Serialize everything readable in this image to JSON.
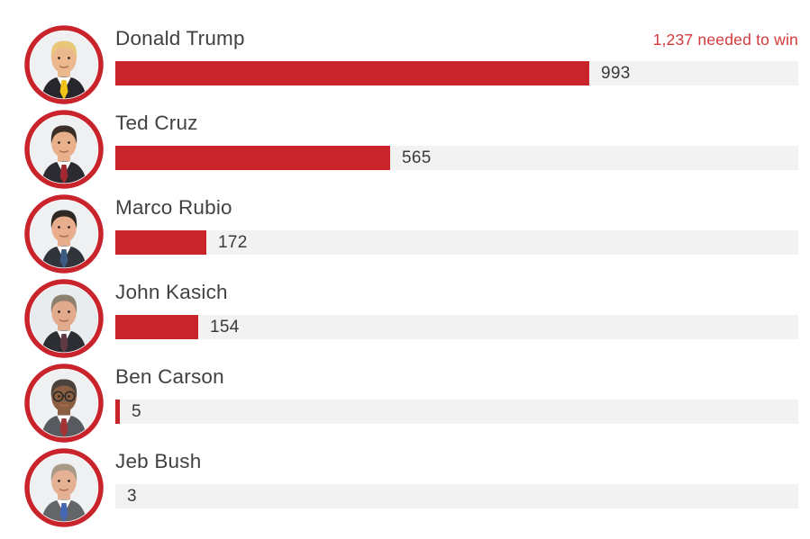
{
  "page": {
    "background": "#ffffff",
    "accent_red": "#c9232b",
    "annotation_red": "#d4393d",
    "track_gray": "#f2f2f2",
    "name_color": "#414144",
    "value_color": "#3a3a3a"
  },
  "annotation": {
    "label": "1,237 needed to win",
    "value": 1237
  },
  "chart_data": {
    "type": "bar",
    "orientation": "horizontal",
    "title": "",
    "categories": [
      "Donald Trump",
      "Ted Cruz",
      "Marco Rubio",
      "John Kasich",
      "Ben Carson",
      "Jeb Bush"
    ],
    "values": [
      993,
      565,
      172,
      154,
      5,
      3
    ],
    "value_labels": [
      "993",
      "565",
      "172",
      "154",
      "5",
      "3"
    ],
    "annotation": "1,237 needed to win",
    "needed_to_win": 1237,
    "xlim": [
      0,
      1428
    ],
    "bar_color": "#c9232b",
    "track_color": "#f2f2f2",
    "legend": "none",
    "grid": false,
    "value_label_position": "right-of-bar"
  },
  "candidates": [
    {
      "name": "Donald Trump",
      "delegates": 993,
      "delegates_label": "993",
      "avatar": {
        "bg": "#eef0f1",
        "skin": "#ecb98e",
        "hair": "#e8c878",
        "suit": "#26262c",
        "tie": "#f2c218",
        "glasses": false
      }
    },
    {
      "name": "Ted Cruz",
      "delegates": 565,
      "delegates_label": "565",
      "avatar": {
        "bg": "#eef0f1",
        "skin": "#e8b18b",
        "hair": "#3b2f28",
        "suit": "#2b2b31",
        "tie": "#a22730",
        "glasses": false
      }
    },
    {
      "name": "Marco Rubio",
      "delegates": 172,
      "delegates_label": "172",
      "avatar": {
        "bg": "#eef0f1",
        "skin": "#e7ad8d",
        "hair": "#2f2721",
        "suit": "#31343b",
        "tie": "#3c5a82",
        "glasses": false
      }
    },
    {
      "name": "John Kasich",
      "delegates": 154,
      "delegates_label": "154",
      "avatar": {
        "bg": "#e8ecef",
        "skin": "#e2aa8c",
        "hair": "#8d7f6d",
        "suit": "#2c2e33",
        "tie": "#5f3a44",
        "glasses": false
      }
    },
    {
      "name": "Ben Carson",
      "delegates": 5,
      "delegates_label": "5",
      "avatar": {
        "bg": "#eef0f1",
        "skin": "#8a5e41",
        "hair": "#4a423c",
        "suit": "#585a5f",
        "tie": "#a13434",
        "glasses": true
      }
    },
    {
      "name": "Jeb Bush",
      "delegates": 3,
      "delegates_label": "3",
      "avatar": {
        "bg": "#eef0f1",
        "skin": "#e5b195",
        "hair": "#a89a86",
        "suit": "#636569",
        "tie": "#4567b2",
        "glasses": false
      }
    }
  ]
}
